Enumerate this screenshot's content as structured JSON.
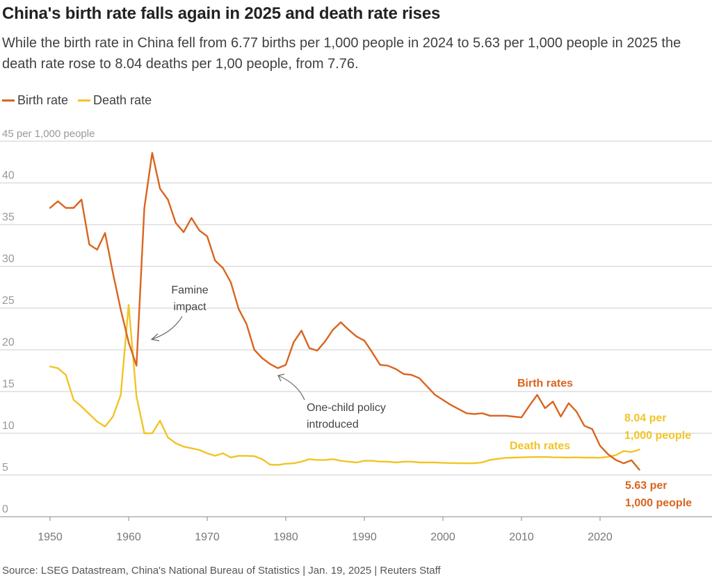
{
  "title": "China's birth rate falls again in 2025 and death rate rises",
  "subtitle": "While the birth rate in China fell from 6.77 births per 1,000 people in 2024 to 5.63 per 1,000 people in 2025 the death rate rose to 8.04 deaths per 1,00 people, from 7.76.",
  "source": "Source: LSEG Datastream, China's National Bureau of Statistics | Jan. 19, 2025  | Reuters Staff",
  "colors": {
    "birth": "#d9641e",
    "death": "#f2c425",
    "grid": "#cccccc",
    "axis": "#888888"
  },
  "chart_data": {
    "type": "line",
    "ylabel": "45 per 1,000 people",
    "ylim": [
      0,
      45
    ],
    "xlim": [
      1950,
      2025
    ],
    "grid": true,
    "legend_position": "top-left",
    "y_ticks": [
      "0",
      "5",
      "10",
      "15",
      "20",
      "25",
      "30",
      "35",
      "40"
    ],
    "x_ticks": [
      "1950",
      "1960",
      "1970",
      "1980",
      "1990",
      "2000",
      "2010",
      "2020"
    ],
    "series": [
      {
        "name": "Birth rate",
        "color": "#d9641e",
        "x": [
          1950,
          1951,
          1952,
          1953,
          1954,
          1955,
          1956,
          1957,
          1958,
          1959,
          1960,
          1961,
          1962,
          1963,
          1964,
          1965,
          1966,
          1967,
          1968,
          1969,
          1970,
          1971,
          1972,
          1973,
          1974,
          1975,
          1976,
          1977,
          1978,
          1979,
          1980,
          1981,
          1982,
          1983,
          1984,
          1985,
          1986,
          1987,
          1988,
          1989,
          1990,
          1991,
          1992,
          1993,
          1994,
          1995,
          1996,
          1997,
          1998,
          1999,
          2000,
          2001,
          2002,
          2003,
          2004,
          2005,
          2006,
          2007,
          2008,
          2009,
          2010,
          2011,
          2012,
          2013,
          2014,
          2015,
          2016,
          2017,
          2018,
          2019,
          2020,
          2021,
          2022,
          2023,
          2024,
          2025
        ],
        "values": [
          37.0,
          37.8,
          37.0,
          37.0,
          38.0,
          32.6,
          32.0,
          34.0,
          29.2,
          24.8,
          20.9,
          18.1,
          37.0,
          43.6,
          39.3,
          38.0,
          35.2,
          34.1,
          35.8,
          34.3,
          33.6,
          30.7,
          29.8,
          28.1,
          24.9,
          23.1,
          20.0,
          19.0,
          18.3,
          17.8,
          18.2,
          20.9,
          22.3,
          20.2,
          19.9,
          21.0,
          22.4,
          23.3,
          22.4,
          21.6,
          21.1,
          19.7,
          18.2,
          18.1,
          17.7,
          17.1,
          17.0,
          16.6,
          15.6,
          14.6,
          14.0,
          13.4,
          12.9,
          12.4,
          12.3,
          12.4,
          12.1,
          12.1,
          12.1,
          12.0,
          11.9,
          13.3,
          14.6,
          13.0,
          13.8,
          12.0,
          13.6,
          12.6,
          10.9,
          10.5,
          8.5,
          7.5,
          6.8,
          6.4,
          6.77,
          5.63
        ]
      },
      {
        "name": "Death rate",
        "color": "#f2c425",
        "x": [
          1950,
          1951,
          1952,
          1953,
          1954,
          1955,
          1956,
          1957,
          1958,
          1959,
          1960,
          1961,
          1962,
          1963,
          1964,
          1965,
          1966,
          1967,
          1968,
          1969,
          1970,
          1971,
          1972,
          1973,
          1974,
          1975,
          1976,
          1977,
          1978,
          1979,
          1980,
          1981,
          1982,
          1983,
          1984,
          1985,
          1986,
          1987,
          1988,
          1989,
          1990,
          1991,
          1992,
          1993,
          1994,
          1995,
          1996,
          1997,
          1998,
          1999,
          2000,
          2001,
          2002,
          2003,
          2004,
          2005,
          2006,
          2007,
          2008,
          2009,
          2010,
          2011,
          2012,
          2013,
          2014,
          2015,
          2016,
          2017,
          2018,
          2019,
          2020,
          2021,
          2022,
          2023,
          2024,
          2025
        ],
        "values": [
          18.0,
          17.8,
          17.0,
          14.0,
          13.2,
          12.3,
          11.4,
          10.8,
          12.0,
          14.6,
          25.4,
          14.4,
          10.0,
          10.0,
          11.5,
          9.5,
          8.8,
          8.4,
          8.2,
          8.0,
          7.6,
          7.3,
          7.6,
          7.1,
          7.3,
          7.3,
          7.25,
          6.9,
          6.25,
          6.2,
          6.35,
          6.4,
          6.6,
          6.9,
          6.8,
          6.8,
          6.9,
          6.7,
          6.6,
          6.5,
          6.7,
          6.7,
          6.6,
          6.6,
          6.5,
          6.6,
          6.6,
          6.5,
          6.5,
          6.5,
          6.45,
          6.43,
          6.41,
          6.4,
          6.42,
          6.51,
          6.81,
          6.93,
          7.06,
          7.08,
          7.11,
          7.14,
          7.15,
          7.16,
          7.12,
          7.11,
          7.09,
          7.11,
          7.08,
          7.09,
          7.07,
          7.18,
          7.37,
          7.87,
          7.76,
          8.04
        ]
      }
    ],
    "annotations": [
      {
        "id": "famine",
        "lines": [
          "Famine",
          "impact"
        ],
        "target_year": 1961,
        "target_value": 18.1
      },
      {
        "id": "one-child",
        "lines": [
          "One-child policy",
          "introduced"
        ],
        "target_year": 1979,
        "target_value": 17.8
      }
    ],
    "series_labels": [
      {
        "id": "birth-rates-label",
        "text": "Birth rates",
        "color": "#d9641e"
      },
      {
        "id": "death-rates-label",
        "text": "Death rates",
        "color": "#f2c425"
      }
    ],
    "end_labels": [
      {
        "id": "death-end",
        "lines": [
          "8.04 per",
          "1,000 people"
        ],
        "color": "#f2c425"
      },
      {
        "id": "birth-end",
        "lines": [
          "5.63 per",
          "1,000 people"
        ],
        "color": "#d9641e"
      }
    ]
  }
}
